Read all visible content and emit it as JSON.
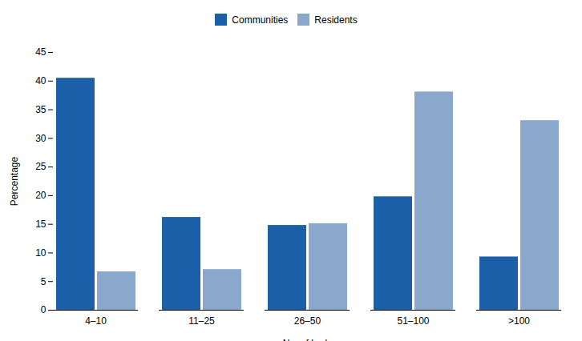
{
  "chart_data": {
    "type": "bar",
    "xlabel": "No. of beds",
    "ylabel": "Percentage",
    "categories": [
      "4–10",
      "11–25",
      "26–50",
      "51–100",
      ">100"
    ],
    "series": [
      {
        "name": "Communities",
        "color": "#1a5fa8",
        "values": [
          40.5,
          16.2,
          14.8,
          19.8,
          9.3
        ]
      },
      {
        "name": "Residents",
        "color": "#8aa8cc",
        "values": [
          6.7,
          7.1,
          15.1,
          38.1,
          33.1
        ]
      }
    ],
    "ylim": [
      0,
      45
    ],
    "yticks": [
      0,
      5,
      10,
      15,
      20,
      25,
      30,
      35,
      40,
      45
    ],
    "legend": "top",
    "grid": false
  }
}
